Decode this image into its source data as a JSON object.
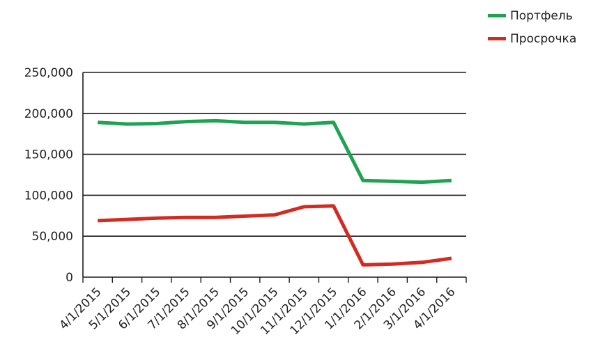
{
  "chart_data": {
    "type": "line",
    "title": "",
    "xlabel": "",
    "ylabel": "",
    "categories": [
      "4/1/2015",
      "5/1/2015",
      "6/1/2015",
      "7/1/2015",
      "8/1/2015",
      "9/1/2015",
      "10/1/2015",
      "11/1/2015",
      "12/1/2015",
      "1/1/2016",
      "2/1/2016",
      "3/1/2016",
      "4/1/2016"
    ],
    "ylim": [
      0,
      250000
    ],
    "yticks": [
      "0",
      "50,000",
      "100,000",
      "150,000",
      "200,000",
      "250,000"
    ],
    "grid": true,
    "legend_position": "top-right",
    "series": [
      {
        "name": "Портфель",
        "color": "#1fa352",
        "values": [
          189000,
          187000,
          187500,
          190000,
          191000,
          189000,
          189000,
          187000,
          189000,
          118000,
          117000,
          116000,
          118000
        ]
      },
      {
        "name": "Просрочка",
        "color": "#d42a20",
        "values": [
          69000,
          70500,
          72000,
          73000,
          73000,
          74500,
          76000,
          86000,
          87000,
          15000,
          16000,
          18000,
          23000
        ]
      }
    ]
  }
}
